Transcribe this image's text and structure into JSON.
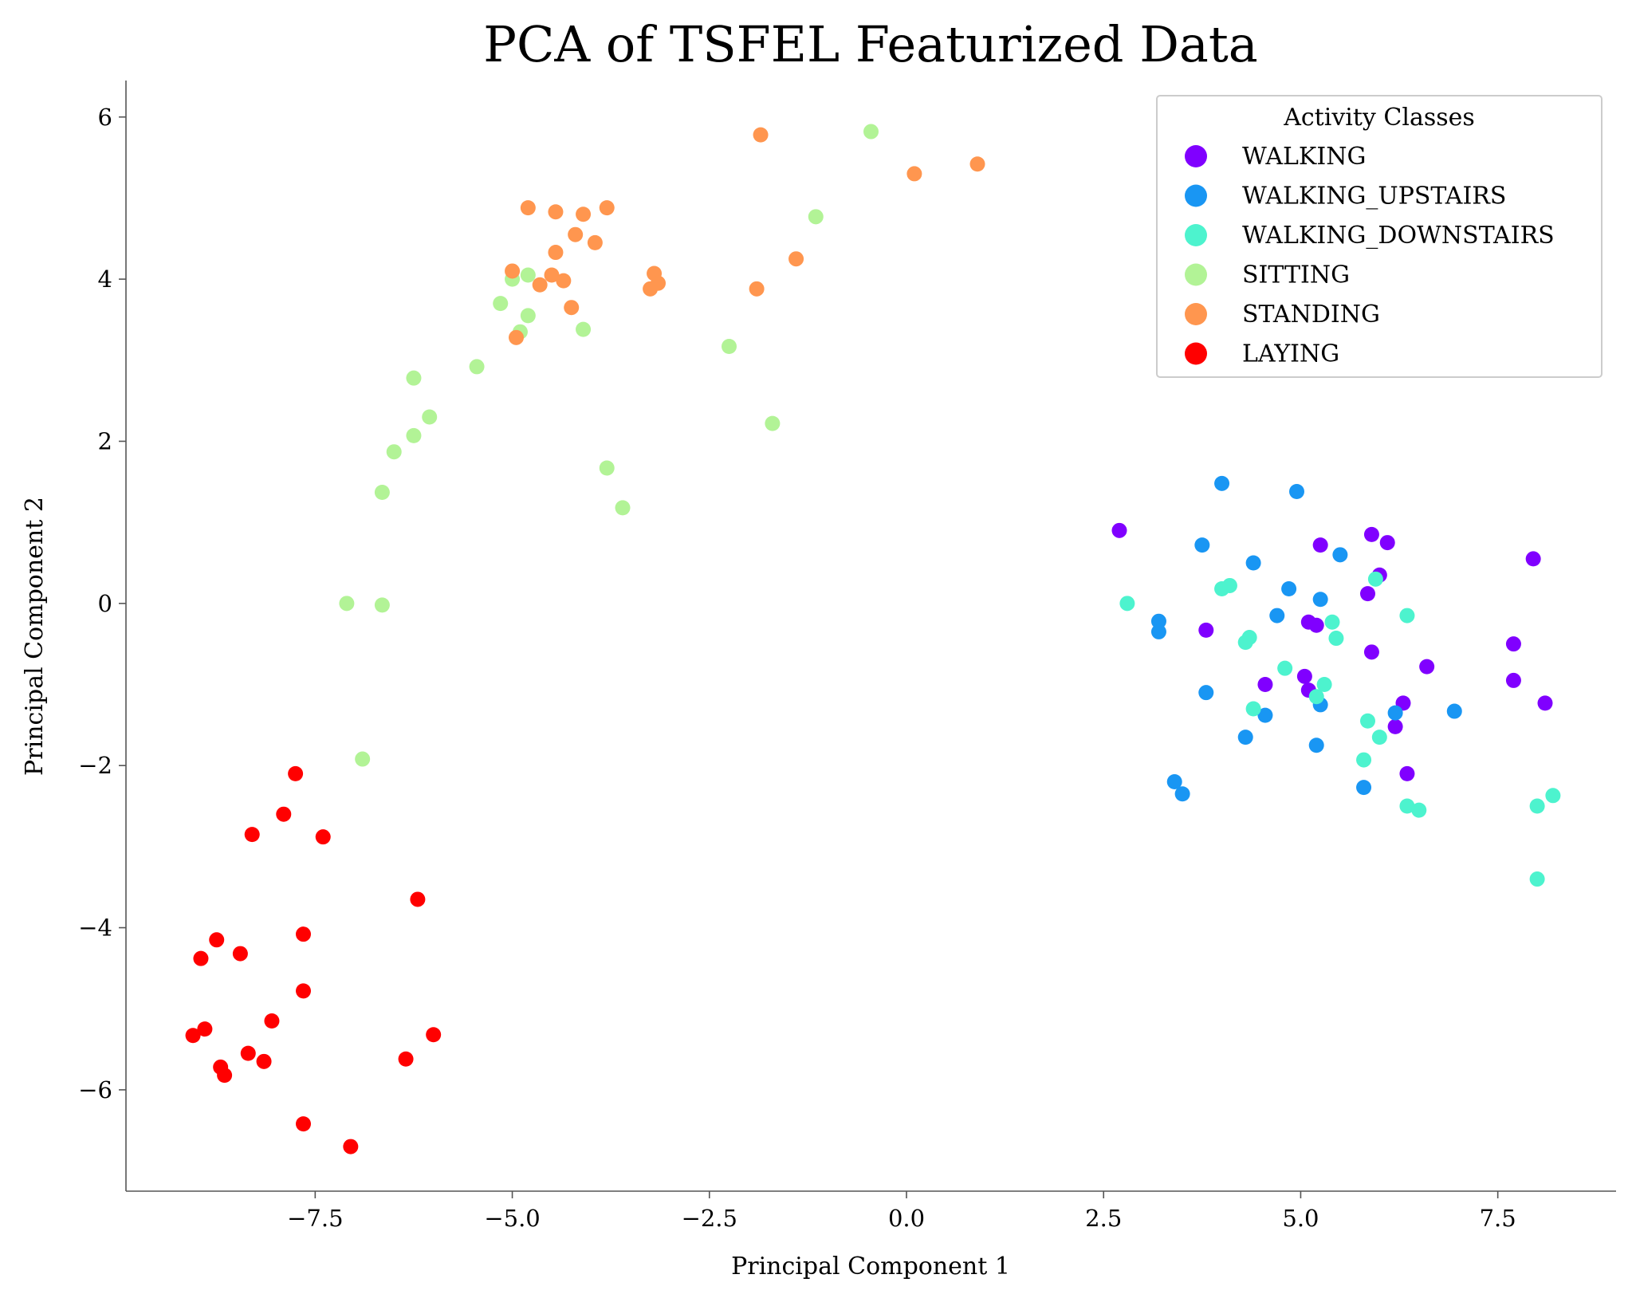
{
  "chart_data": {
    "type": "scatter",
    "title": "PCA of TSFEL Featurized Data",
    "xlabel": "Principal Component 1",
    "ylabel": "Principal Component 2",
    "xlim": [
      -9.9,
      9.0
    ],
    "ylim": [
      -7.25,
      6.45
    ],
    "xticks": [
      -7.5,
      -5.0,
      -2.5,
      0.0,
      2.5,
      5.0,
      7.5
    ],
    "xtick_labels": [
      "−7.5",
      "−5.0",
      "−2.5",
      "0.0",
      "2.5",
      "5.0",
      "7.5"
    ],
    "yticks": [
      -6,
      -4,
      -2,
      0,
      2,
      4,
      6
    ],
    "ytick_labels": [
      "−6",
      "−4",
      "−2",
      "0",
      "2",
      "4",
      "6"
    ],
    "grid": false,
    "legend": {
      "title": "Activity Classes",
      "placement": "top-right"
    },
    "series": [
      {
        "name": "WALKING",
        "color": "#8000ff",
        "points": [
          [
            2.7,
            0.9
          ],
          [
            5.25,
            0.72
          ],
          [
            5.9,
            0.85
          ],
          [
            6.1,
            0.75
          ],
          [
            6.0,
            0.35
          ],
          [
            5.85,
            0.12
          ],
          [
            7.95,
            0.55
          ],
          [
            3.8,
            -0.33
          ],
          [
            5.1,
            -0.23
          ],
          [
            5.2,
            -0.27
          ],
          [
            5.9,
            -0.6
          ],
          [
            6.6,
            -0.78
          ],
          [
            7.7,
            -0.5
          ],
          [
            5.05,
            -0.9
          ],
          [
            5.1,
            -1.07
          ],
          [
            4.55,
            -1.0
          ],
          [
            6.3,
            -1.23
          ],
          [
            7.7,
            -0.95
          ],
          [
            8.1,
            -1.23
          ],
          [
            6.2,
            -1.52
          ],
          [
            6.35,
            -2.1
          ]
        ]
      },
      {
        "name": "WALKING_UPSTAIRS",
        "color": "#1996f3",
        "points": [
          [
            4.0,
            1.48
          ],
          [
            4.95,
            1.38
          ],
          [
            3.75,
            0.72
          ],
          [
            4.4,
            0.5
          ],
          [
            5.5,
            0.6
          ],
          [
            4.85,
            0.18
          ],
          [
            5.25,
            0.05
          ],
          [
            3.2,
            -0.22
          ],
          [
            3.2,
            -0.35
          ],
          [
            4.7,
            -0.15
          ],
          [
            3.8,
            -1.1
          ],
          [
            4.55,
            -1.38
          ],
          [
            5.25,
            -1.25
          ],
          [
            6.2,
            -1.35
          ],
          [
            6.95,
            -1.33
          ],
          [
            4.3,
            -1.65
          ],
          [
            5.2,
            -1.75
          ],
          [
            5.8,
            -2.27
          ],
          [
            3.4,
            -2.2
          ],
          [
            3.5,
            -2.35
          ]
        ]
      },
      {
        "name": "WALKING_DOWNSTAIRS",
        "color": "#4df3ce",
        "points": [
          [
            2.8,
            0.0
          ],
          [
            4.0,
            0.18
          ],
          [
            4.1,
            0.22
          ],
          [
            5.95,
            0.3
          ],
          [
            6.35,
            -0.15
          ],
          [
            5.4,
            -0.23
          ],
          [
            5.45,
            -0.43
          ],
          [
            4.35,
            -0.42
          ],
          [
            4.3,
            -0.48
          ],
          [
            4.8,
            -0.8
          ],
          [
            5.2,
            -1.15
          ],
          [
            5.3,
            -1.0
          ],
          [
            4.4,
            -1.3
          ],
          [
            5.85,
            -1.45
          ],
          [
            6.0,
            -1.65
          ],
          [
            5.8,
            -1.93
          ],
          [
            6.35,
            -2.5
          ],
          [
            6.5,
            -2.55
          ],
          [
            8.0,
            -2.5
          ],
          [
            8.2,
            -2.37
          ],
          [
            8.0,
            -3.4
          ]
        ]
      },
      {
        "name": "SITTING",
        "color": "#b2f396",
        "points": [
          [
            -0.45,
            5.82
          ],
          [
            -1.15,
            4.77
          ],
          [
            -5.0,
            4.0
          ],
          [
            -4.8,
            4.05
          ],
          [
            -5.15,
            3.7
          ],
          [
            -4.8,
            3.55
          ],
          [
            -4.9,
            3.35
          ],
          [
            -4.1,
            3.38
          ],
          [
            -2.25,
            3.17
          ],
          [
            -5.45,
            2.92
          ],
          [
            -6.25,
            2.78
          ],
          [
            -6.05,
            2.3
          ],
          [
            -1.7,
            2.22
          ],
          [
            -6.25,
            2.07
          ],
          [
            -6.5,
            1.87
          ],
          [
            -3.8,
            1.67
          ],
          [
            -6.65,
            1.37
          ],
          [
            -3.6,
            1.18
          ],
          [
            -7.1,
            0.0
          ],
          [
            -6.65,
            -0.02
          ],
          [
            -6.9,
            -1.92
          ]
        ]
      },
      {
        "name": "STANDING",
        "color": "#ff964f",
        "points": [
          [
            -1.85,
            5.78
          ],
          [
            0.9,
            5.42
          ],
          [
            0.1,
            5.3
          ],
          [
            -4.8,
            4.88
          ],
          [
            -3.8,
            4.88
          ],
          [
            -4.45,
            4.83
          ],
          [
            -4.1,
            4.8
          ],
          [
            -4.2,
            4.55
          ],
          [
            -3.95,
            4.45
          ],
          [
            -4.45,
            4.33
          ],
          [
            -1.4,
            4.25
          ],
          [
            -5.0,
            4.1
          ],
          [
            -4.5,
            4.05
          ],
          [
            -3.2,
            4.07
          ],
          [
            -4.35,
            3.98
          ],
          [
            -3.15,
            3.95
          ],
          [
            -4.65,
            3.93
          ],
          [
            -3.25,
            3.88
          ],
          [
            -1.9,
            3.88
          ],
          [
            -4.25,
            3.65
          ],
          [
            -4.95,
            3.28
          ]
        ]
      },
      {
        "name": "LAYING",
        "color": "#ff0000",
        "points": [
          [
            -7.75,
            -2.1
          ],
          [
            -7.9,
            -2.6
          ],
          [
            -8.3,
            -2.85
          ],
          [
            -7.4,
            -2.88
          ],
          [
            -6.2,
            -3.65
          ],
          [
            -7.65,
            -4.08
          ],
          [
            -8.75,
            -4.15
          ],
          [
            -8.45,
            -4.32
          ],
          [
            -8.95,
            -4.38
          ],
          [
            -7.65,
            -4.78
          ],
          [
            -8.05,
            -5.15
          ],
          [
            -8.9,
            -5.25
          ],
          [
            -9.05,
            -5.33
          ],
          [
            -6.0,
            -5.32
          ],
          [
            -8.35,
            -5.55
          ],
          [
            -8.15,
            -5.65
          ],
          [
            -8.7,
            -5.72
          ],
          [
            -8.65,
            -5.82
          ],
          [
            -6.35,
            -5.62
          ],
          [
            -7.65,
            -6.42
          ],
          [
            -7.05,
            -6.7
          ]
        ]
      }
    ]
  }
}
